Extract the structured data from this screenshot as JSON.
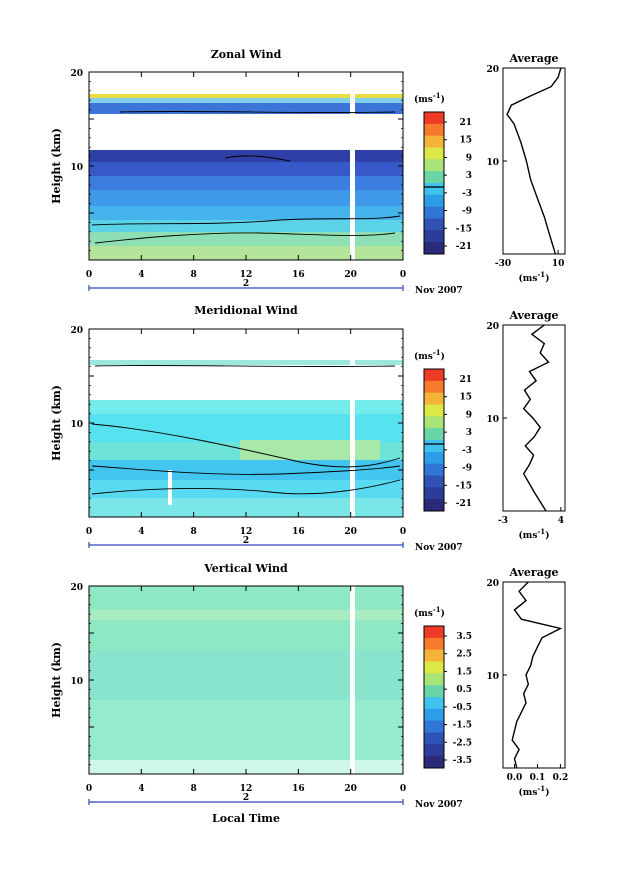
{
  "chart_data": [
    {
      "type": "heatmap",
      "title": "Zonal Wind",
      "ylabel": "Height (km)",
      "ylim": [
        0,
        20
      ],
      "xlim": [
        0,
        24
      ],
      "xtick_labels": [
        "0",
        "4",
        "8",
        "12",
        "16",
        "20",
        "0"
      ],
      "date_marker": "2",
      "date_label": "Nov 2007",
      "colorbar": {
        "unit": "(ms",
        "unit_exp": "-1",
        "unit_close": ")",
        "range": [
          -24,
          24
        ],
        "tick_labels": [
          "21",
          "15",
          "9",
          "3",
          "-3",
          "-9",
          "-15",
          "-21"
        ]
      },
      "average_profile": {
        "title": "Average",
        "xlabel": "(ms",
        "xlabel_exp": "-1",
        "xlabel_close": ")",
        "xlim": [
          -30,
          15
        ],
        "xtick_labels": [
          "-30",
          "10"
        ],
        "height": [
          0,
          2,
          4,
          6,
          8,
          10,
          12,
          14,
          15,
          16,
          17,
          18,
          19,
          20
        ],
        "values": [
          8,
          4,
          0,
          -5,
          -10,
          -13,
          -17,
          -22,
          -27,
          -24,
          -10,
          5,
          10,
          12
        ]
      }
    },
    {
      "type": "heatmap",
      "title": "Meridional Wind",
      "ylabel": "Height (km)",
      "ylim": [
        0,
        20
      ],
      "xlim": [
        0,
        24
      ],
      "xtick_labels": [
        "0",
        "4",
        "8",
        "12",
        "16",
        "20",
        "0"
      ],
      "date_marker": "2",
      "date_label": "Nov 2007",
      "colorbar": {
        "unit": "(ms",
        "unit_exp": "-1",
        "unit_close": ")",
        "range": [
          -24,
          24
        ],
        "tick_labels": [
          "21",
          "15",
          "9",
          "3",
          "-3",
          "-9",
          "-15",
          "-21"
        ]
      },
      "average_profile": {
        "title": "Average",
        "xlabel": "(ms",
        "xlabel_exp": "-1",
        "xlabel_close": ")",
        "xlim": [
          -3,
          4.5
        ],
        "xtick_labels": [
          "-3",
          "4"
        ],
        "height": [
          0,
          2,
          4,
          5,
          6,
          7,
          8,
          9,
          10,
          11,
          12,
          13,
          14,
          15,
          16,
          17,
          18,
          19,
          20
        ],
        "values": [
          2.2,
          0.8,
          -0.5,
          0.2,
          0.7,
          -0.3,
          0.8,
          1.5,
          0.6,
          -0.5,
          0.3,
          -0.4,
          1.0,
          0.2,
          2.5,
          1.5,
          2.0,
          0.5,
          2.0
        ]
      }
    },
    {
      "type": "heatmap",
      "title": "Vertical Wind",
      "ylabel": "Height (km)",
      "xlabel": "Local Time",
      "ylim": [
        0,
        20
      ],
      "xlim": [
        0,
        24
      ],
      "xtick_labels": [
        "0",
        "4",
        "8",
        "12",
        "16",
        "20",
        "0"
      ],
      "date_marker": "2",
      "date_label": "Nov 2007",
      "colorbar": {
        "unit": "(ms",
        "unit_exp": "-1",
        "unit_close": ")",
        "range": [
          -4,
          4
        ],
        "tick_labels": [
          "3.5",
          "2.5",
          "1.5",
          "0.5",
          "-0.5",
          "-1.5",
          "-2.5",
          "-3.5"
        ]
      },
      "average_profile": {
        "title": "Average",
        "xlabel": "(ms",
        "xlabel_exp": "-1",
        "xlabel_close": ")",
        "xlim": [
          -0.05,
          0.22
        ],
        "xtick_labels": [
          "0.0",
          "0.1",
          "0.2"
        ],
        "height": [
          0,
          1,
          2,
          3,
          4,
          5,
          6,
          7,
          8,
          9,
          10,
          11,
          12,
          13,
          14,
          15,
          16,
          17,
          18,
          19,
          20
        ],
        "values": [
          0.01,
          0.0,
          0.02,
          -0.01,
          0.0,
          0.01,
          0.03,
          0.05,
          0.04,
          0.06,
          0.05,
          0.07,
          0.08,
          0.1,
          0.12,
          0.2,
          0.03,
          0.0,
          0.05,
          0.02,
          0.06
        ]
      }
    }
  ]
}
